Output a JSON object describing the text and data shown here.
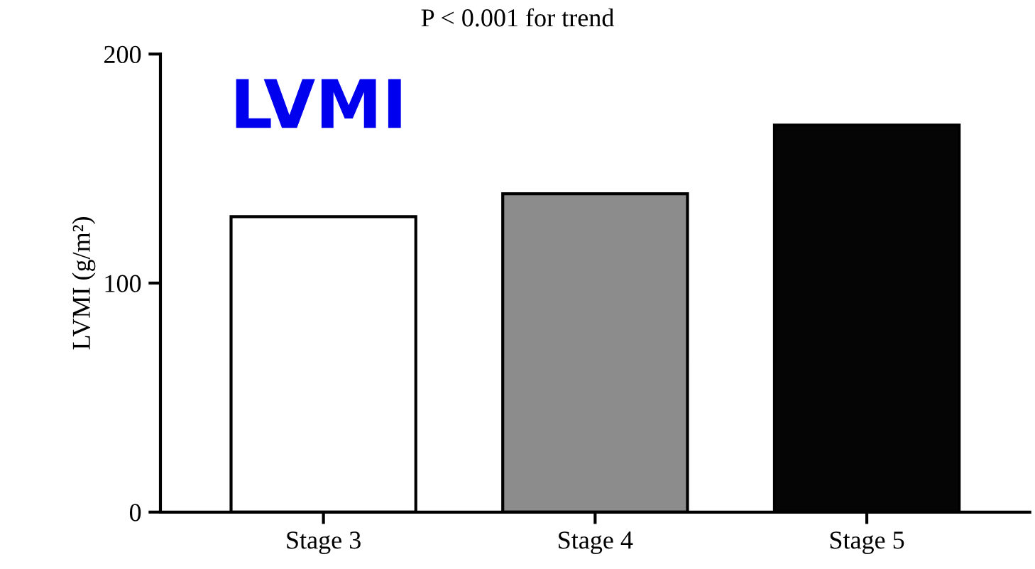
{
  "chart_data": {
    "type": "bar",
    "title": "LVMI",
    "ylabel": "LVMI (g/m²)",
    "annotations": [
      "P < 0.001 for trend"
    ],
    "categories": [
      "Stage 3",
      "Stage 4",
      "Stage 5"
    ],
    "values": [
      129,
      139,
      169
    ],
    "colors": [
      "#ffffff",
      "#8c8c8c",
      "#050505"
    ],
    "ylim": [
      0,
      200
    ],
    "yticks": [
      0,
      100,
      200
    ],
    "grid": false,
    "legend": false
  }
}
